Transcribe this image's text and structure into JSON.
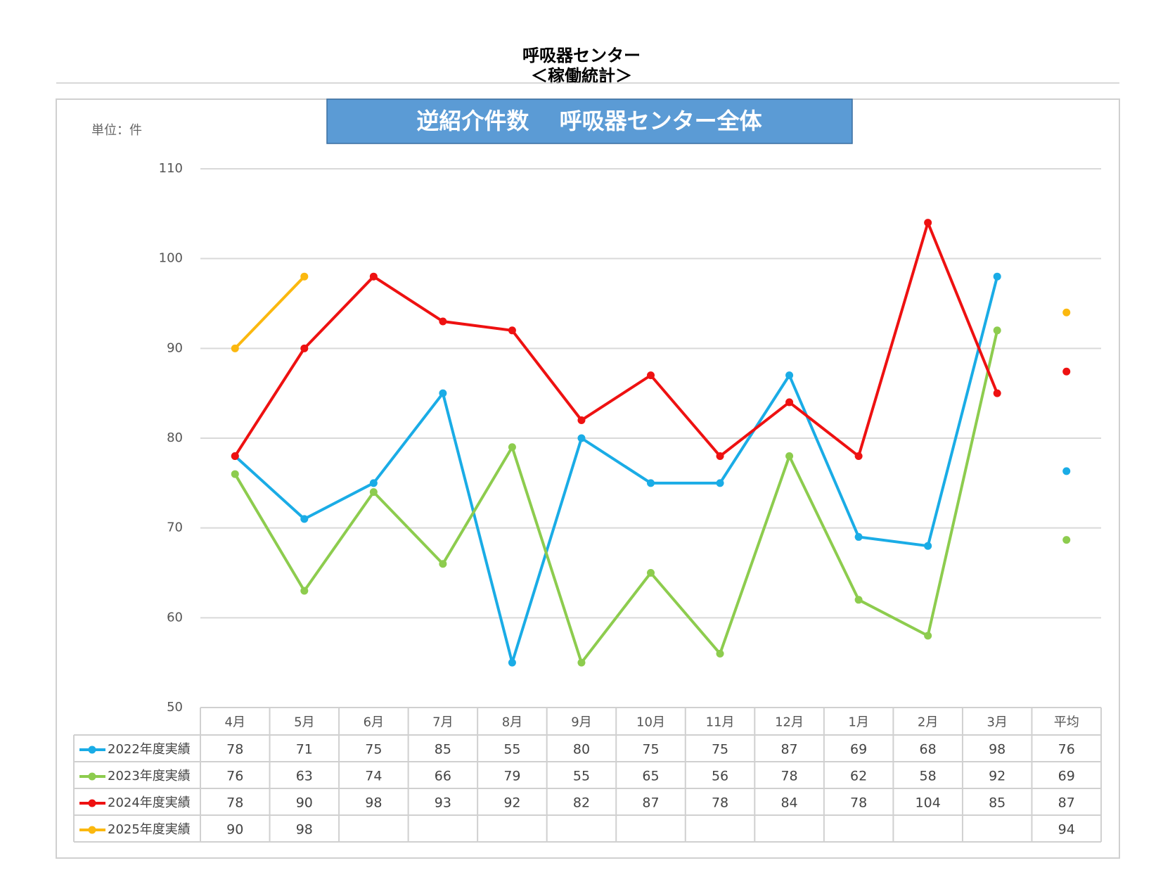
{
  "header": {
    "title": "呼吸器センター",
    "subtitle": "＜稼働統計＞"
  },
  "chart_data": {
    "type": "line",
    "title": "逆紹介件数　 呼吸器センター全体",
    "unit_label": "単位：件",
    "categories": [
      "4月",
      "5月",
      "6月",
      "7月",
      "8月",
      "9月",
      "10月",
      "11月",
      "12月",
      "1月",
      "2月",
      "3月"
    ],
    "average_label": "平均",
    "ylim": [
      50,
      110
    ],
    "yticks": [
      50,
      60,
      70,
      80,
      90,
      100,
      110
    ],
    "grid": true,
    "series": [
      {
        "name": "2022年度実績",
        "color": "#1aace6",
        "values": [
          78,
          71,
          75,
          85,
          55,
          80,
          75,
          75,
          87,
          69,
          68,
          98
        ],
        "average": 76.33,
        "average_label": "76"
      },
      {
        "name": "2023年度実績",
        "color": "#8dcc4e",
        "values": [
          76,
          63,
          74,
          66,
          79,
          55,
          65,
          56,
          78,
          62,
          58,
          92
        ],
        "average": 68.67,
        "average_label": "69"
      },
      {
        "name": "2024年度実績",
        "color": "#ee1111",
        "values": [
          78,
          90,
          98,
          93,
          92,
          82,
          87,
          78,
          84,
          78,
          104,
          85
        ],
        "average": 87.42,
        "average_label": "87"
      },
      {
        "name": "2025年度実績",
        "color": "#fbb80f",
        "values": [
          90,
          98,
          null,
          null,
          null,
          null,
          null,
          null,
          null,
          null,
          null,
          null
        ],
        "average": 94,
        "average_label": "94"
      }
    ]
  }
}
